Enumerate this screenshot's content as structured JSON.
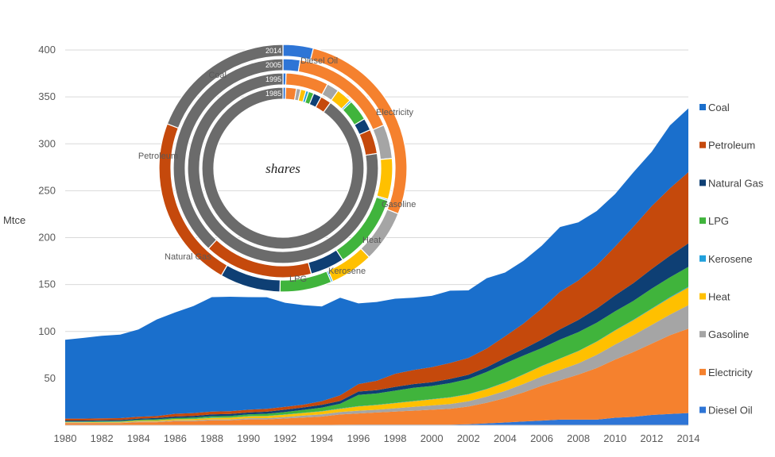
{
  "chart_data": [
    {
      "type": "area",
      "stacked": true,
      "ylabel": "Mtce",
      "ylim": [
        0,
        400
      ],
      "yticks": [
        50,
        100,
        150,
        200,
        250,
        300,
        350,
        400
      ],
      "xlim": [
        1980,
        2014
      ],
      "xticks": [
        1980,
        1982,
        1984,
        1986,
        1988,
        1990,
        1992,
        1994,
        1996,
        1998,
        2000,
        2002,
        2004,
        2006,
        2008,
        2010,
        2012,
        2014
      ],
      "grid": "horizontal",
      "legend_position": "right",
      "x": [
        1980,
        1981,
        1982,
        1983,
        1984,
        1985,
        1986,
        1987,
        1988,
        1989,
        1990,
        1991,
        1992,
        1993,
        1994,
        1995,
        1996,
        1997,
        1998,
        1999,
        2000,
        2001,
        2002,
        2003,
        2004,
        2005,
        2006,
        2007,
        2008,
        2009,
        2010,
        2011,
        2012,
        2013,
        2014
      ],
      "series": [
        {
          "name": "Diesel Oil",
          "color": "#2E75D6",
          "values": [
            0.3,
            0.3,
            0.3,
            0.3,
            0.3,
            0.3,
            0.3,
            0.3,
            0.3,
            0.3,
            0.3,
            0.3,
            0.3,
            0.3,
            0.3,
            0.5,
            0.6,
            0.6,
            0.6,
            0.6,
            0.6,
            0.6,
            1,
            2,
            3,
            4,
            5,
            6,
            6,
            6,
            8,
            9,
            11,
            12,
            13
          ]
        },
        {
          "name": "Electricity",
          "color": "#F5812E",
          "values": [
            2,
            2,
            2,
            2,
            3,
            3,
            4,
            4,
            5,
            5,
            6,
            6,
            7,
            8,
            9,
            11,
            12,
            13,
            14,
            15,
            16,
            17,
            19,
            22,
            26,
            31,
            37,
            42,
            48,
            55,
            62,
            69,
            76,
            84,
            90
          ]
        },
        {
          "name": "Gasoline",
          "color": "#A5A5A5",
          "values": [
            0.5,
            0.5,
            0.6,
            0.6,
            0.7,
            0.8,
            0.9,
            1,
            1,
            1,
            1.2,
            1.3,
            1.5,
            2,
            2.3,
            2.6,
            3,
            3,
            3.5,
            4,
            4.5,
            5,
            5.5,
            6.5,
            7.5,
            9,
            10,
            11,
            12,
            14,
            16,
            18,
            20,
            22,
            25
          ]
        },
        {
          "name": "Heat",
          "color": "#FFC000",
          "values": [
            0.5,
            0.5,
            0.6,
            0.7,
            0.8,
            1,
            1.2,
            1.4,
            1.6,
            1.8,
            2,
            2.2,
            2.5,
            2.8,
            3.2,
            3.5,
            4.5,
            5,
            5.5,
            6,
            6.5,
            7,
            7.5,
            8,
            9,
            10,
            11,
            12,
            13,
            14,
            15,
            16,
            17,
            18,
            19
          ]
        },
        {
          "name": "Kerosene",
          "color": "#21A0DC",
          "values": [
            0.3,
            0.3,
            0.3,
            0.3,
            0.3,
            0.3,
            0.3,
            0.3,
            0.3,
            0.3,
            0.3,
            0.3,
            0.3,
            0.3,
            0.3,
            0.3,
            0.3,
            0.3,
            0.3,
            0.3,
            0.3,
            0.3,
            0.3,
            0.3,
            0.3,
            0.3,
            0.3,
            0.3,
            0.3,
            0.3,
            0.4,
            0.5,
            0.6,
            0.7,
            0.8
          ]
        },
        {
          "name": "LPG",
          "color": "#40B43C",
          "values": [
            0.5,
            0.5,
            0.6,
            0.7,
            0.8,
            1,
            1,
            1.2,
            1.4,
            1.6,
            1.8,
            2.2,
            2.6,
            3,
            3.8,
            5,
            12,
            12,
            13,
            14,
            14,
            15,
            16,
            18,
            20,
            20,
            19,
            20,
            20,
            20,
            20,
            20,
            21,
            21,
            21
          ]
        },
        {
          "name": "Natural Gas",
          "color": "#0E3F74",
          "values": [
            1,
            1,
            1,
            1,
            1.2,
            1.4,
            1.6,
            1.8,
            2,
            2,
            2,
            2.2,
            2.4,
            2.6,
            2.8,
            3,
            3.5,
            3.5,
            4,
            4,
            4,
            4.5,
            4.5,
            5,
            6,
            7,
            9,
            11,
            13,
            15,
            17,
            19,
            21,
            23,
            25
          ]
        },
        {
          "name": "Petroleum",
          "color": "#C5490C",
          "values": [
            2,
            2,
            2,
            2,
            2,
            2,
            3,
            3,
            3,
            3,
            3,
            3,
            3,
            3,
            4,
            6,
            8,
            10,
            14,
            15,
            16,
            17,
            18,
            20,
            23,
            27,
            33,
            40,
            42,
            46,
            52,
            60,
            67,
            72,
            76
          ]
        },
        {
          "name": "Coal",
          "color": "#1A6FCC",
          "values": [
            84,
            86,
            88,
            89,
            93,
            103,
            108,
            114,
            122,
            122,
            120,
            119,
            111,
            106,
            101,
            104,
            86,
            84,
            80,
            77,
            76,
            77,
            72,
            75,
            68,
            67,
            67,
            69,
            62,
            58,
            56,
            58,
            58,
            67,
            68
          ]
        }
      ]
    },
    {
      "type": "pie",
      "variant": "multi-level donut",
      "center_label": "shares",
      "rings": [
        {
          "label": "1985",
          "values": {
            "Coal": 84,
            "Diesel Oil": 0.5,
            "Electricity": 2,
            "Gasoline": 0.8,
            "Heat": 1,
            "Kerosene": 0.5,
            "LPG": 1,
            "Natural Gas": 1.5,
            "Petroleum": 2
          }
        },
        {
          "label": "1995",
          "values": {
            "Coal": 75,
            "Diesel Oil": 0.5,
            "Electricity": 7,
            "Gasoline": 2,
            "Heat": 2.5,
            "Kerosene": 0.3,
            "LPG": 3.5,
            "Natural Gas": 2,
            "Petroleum": 4
          }
        },
        {
          "label": "2005",
          "values": {
            "Coal": 38,
            "Diesel Oil": 2.5,
            "Electricity": 16,
            "Gasoline": 5,
            "Heat": 6,
            "Kerosene": 0.2,
            "LPG": 11,
            "Natural Gas": 5,
            "Petroleum": 16
          }
        },
        {
          "label": "2014",
          "values": {
            "Coal": 17,
            "Diesel Oil": 3.5,
            "Electricity": 24,
            "Gasoline": 6,
            "Heat": 5,
            "Kerosene": 0.2,
            "LPG": 6,
            "Natural Gas": 7,
            "Petroleum": 20
          }
        }
      ],
      "slice_order": [
        "Diesel Oil",
        "Electricity",
        "Gasoline",
        "Heat",
        "Kerosene",
        "LPG",
        "Natural Gas",
        "Petroleum",
        "Coal"
      ],
      "colors": {
        "Diesel Oil": "#2E75D6",
        "Electricity": "#F5812E",
        "Gasoline": "#A5A5A5",
        "Heat": "#FFC000",
        "Kerosene": "#21A0DC",
        "LPG": "#40B43C",
        "Natural Gas": "#0E3F74",
        "Petroleum": "#C5490C",
        "Coal": "#6B6B6B"
      },
      "callout_labels": [
        "Diesel Oil",
        "Electricity",
        "Gasoline",
        "Heat",
        "Kerosene",
        "LPG",
        "Natural Gas",
        "Petroleum",
        "Coal"
      ]
    }
  ]
}
